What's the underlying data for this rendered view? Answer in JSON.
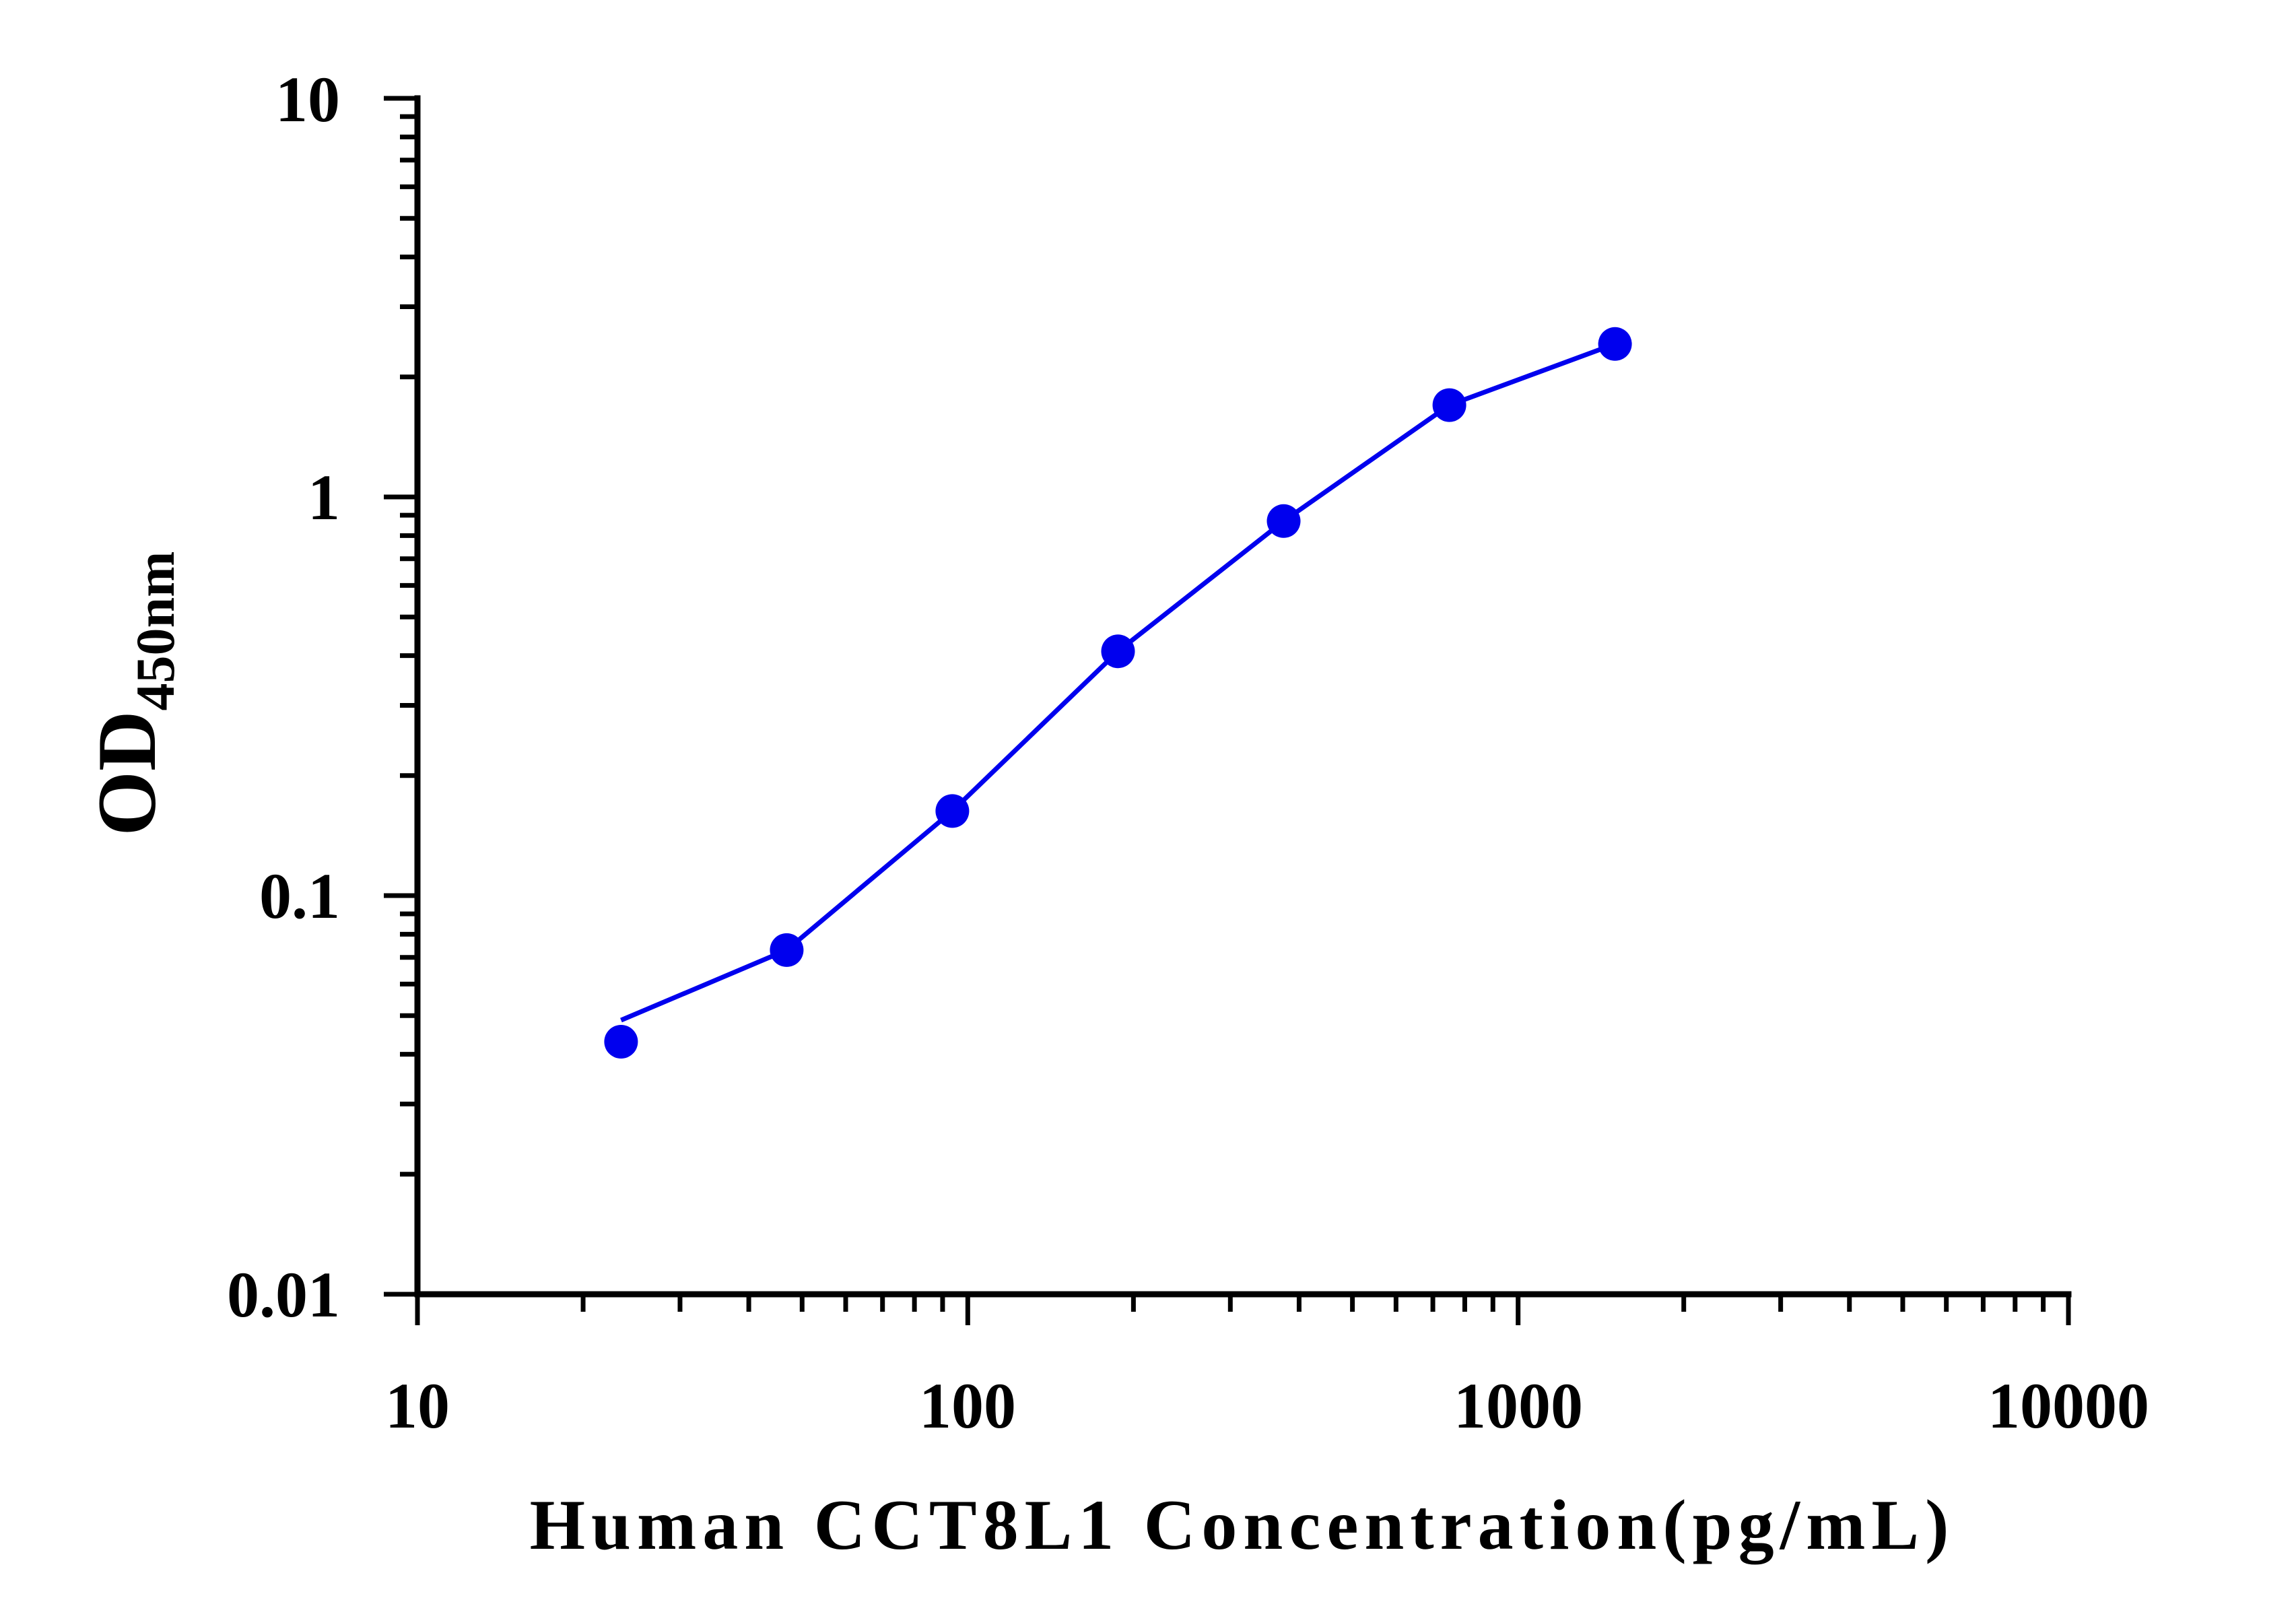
{
  "chart_data": {
    "type": "line",
    "title": "",
    "xlabel": "Human CCT8L1 Concentration(pg/mL)",
    "ylabel_main": "OD",
    "ylabel_sub": "450nm",
    "xscale": "log",
    "yscale": "log",
    "xlim": [
      10,
      10000
    ],
    "ylim": [
      0.01,
      10
    ],
    "x_ticks": [
      "10",
      "100",
      "1000",
      "10000"
    ],
    "y_ticks": [
      "0.01",
      "0.1",
      "1",
      "10"
    ],
    "grid": false,
    "legend": "none",
    "series": [
      {
        "color": "#0000ee",
        "marker": "circle",
        "x": [
          23.44,
          46.88,
          93.75,
          187.5,
          375,
          750,
          1500
        ],
        "y": [
          0.043,
          0.073,
          0.163,
          0.41,
          0.87,
          1.7,
          2.42
        ]
      }
    ]
  }
}
